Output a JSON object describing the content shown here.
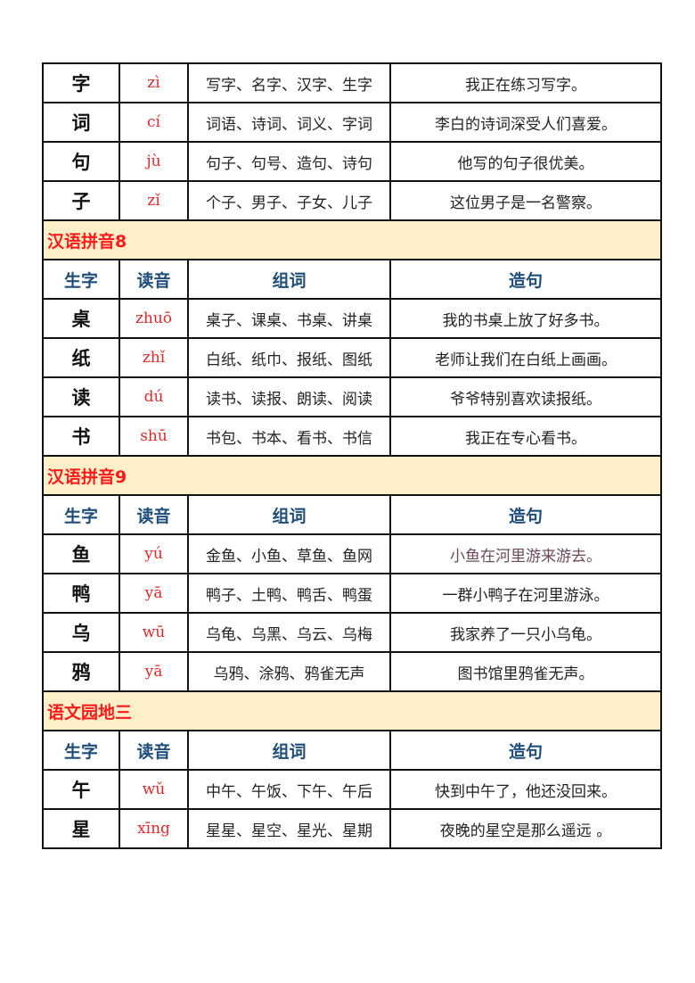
{
  "headers": {
    "char": "生字",
    "pinyin": "读音",
    "words": "组词",
    "sentence": "造句"
  },
  "colors": {
    "section_bg": "#fdefc8",
    "section_title": "#ff1a1a",
    "header_text": "#1f4e79",
    "pinyin": "#e02a2a"
  },
  "blocks": [
    {
      "title": null,
      "show_header": false,
      "rows": [
        {
          "char": "字",
          "pinyin": "zì",
          "words": "写字、名字、汉字、生字",
          "sentence": "我正在练习写字。"
        },
        {
          "char": "词",
          "pinyin": "cí",
          "words": "词语、诗词、词义、字词",
          "sentence": "李白的诗词深受人们喜爱。"
        },
        {
          "char": "句",
          "pinyin": "jù",
          "words": "句子、句号、造句、诗句",
          "sentence": "他写的句子很优美。"
        },
        {
          "char": "子",
          "pinyin": "zǐ",
          "words": "个子、男子、子女、儿子",
          "sentence": "这位男子是一名警察。"
        }
      ]
    },
    {
      "title": "汉语拼音8",
      "show_header": true,
      "rows": [
        {
          "char": "桌",
          "pinyin": "zhuō",
          "words": "桌子、课桌、书桌、讲桌",
          "sentence": "我的书桌上放了好多书。"
        },
        {
          "char": "纸",
          "pinyin": "zhǐ",
          "words": "白纸、纸巾、报纸、图纸",
          "sentence": "老师让我们在白纸上画画。"
        },
        {
          "char": "读",
          "pinyin": "dú",
          "words": "读书、读报、朗读、阅读",
          "sentence": "爷爷特别喜欢读报纸。"
        },
        {
          "char": "书",
          "pinyin": "shū",
          "words": "书包、书本、看书、书信",
          "sentence": "我正在专心看书。"
        }
      ]
    },
    {
      "title": "汉语拼音9",
      "show_header": true,
      "rows": [
        {
          "char": "鱼",
          "pinyin": "yú",
          "words": "金鱼、小鱼、草鱼、鱼网",
          "sentence": "小鱼在河里游来游去。",
          "alt": true
        },
        {
          "char": "鸭",
          "pinyin": "yā",
          "words": "鸭子、土鸭、鸭舌、鸭蛋",
          "sentence": "一群小鸭子在河里游泳。"
        },
        {
          "char": "乌",
          "pinyin": "wū",
          "words": "乌龟、乌黑、乌云、乌梅",
          "sentence": "我家养了一只小乌龟。"
        },
        {
          "char": "鸦",
          "pinyin": "yā",
          "words": "乌鸦、涂鸦、鸦雀无声",
          "sentence": "图书馆里鸦雀无声。"
        }
      ]
    },
    {
      "title": "语文园地三",
      "show_header": true,
      "rows": [
        {
          "char": "午",
          "pinyin": "wǔ",
          "words": "中午、午饭、下午、午后",
          "sentence": "快到中午了，他还没回来。"
        },
        {
          "char": "星",
          "pinyin": "xīng",
          "words": "星星、星空、星光、星期",
          "sentence": "夜晚的星空是那么遥远 。"
        }
      ]
    }
  ]
}
